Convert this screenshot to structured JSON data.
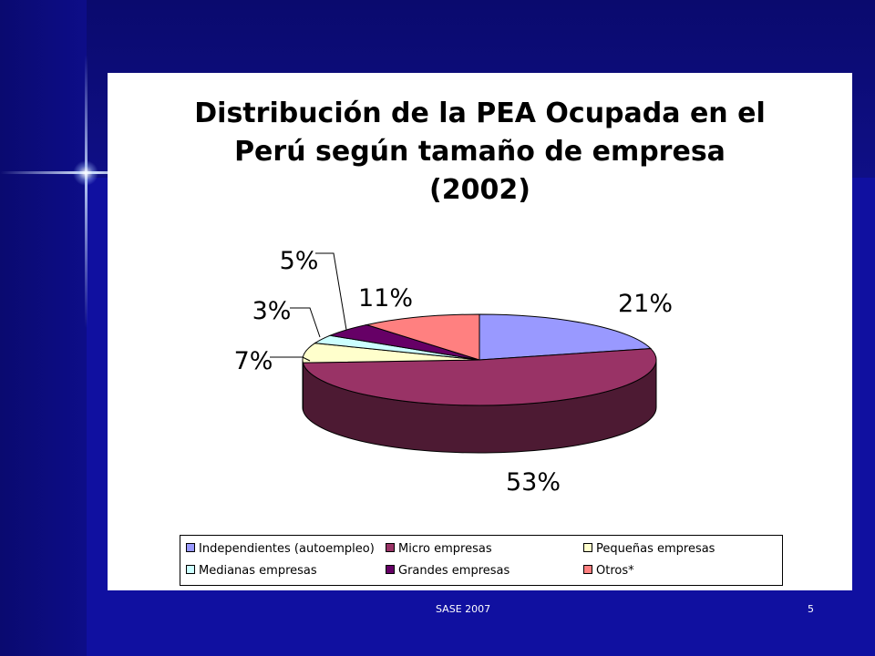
{
  "footer": {
    "left_text": "SASE   2007",
    "page_number": "5"
  },
  "chart_data": {
    "type": "pie",
    "title_lines": [
      "Distribución de la PEA Ocupada en el",
      "Perú según tamaño de empresa",
      "(2002)"
    ],
    "categories": [
      "Independientes (autoempleo)",
      "Micro empresas",
      "Pequeñas empresas",
      "Medianas empresas",
      "Grandes empresas",
      "Otros*"
    ],
    "values": [
      21,
      53,
      7,
      3,
      5,
      11
    ],
    "labels": [
      "21%",
      "53%",
      "7%",
      "3%",
      "5%",
      "11%"
    ],
    "colors": [
      "#9999ff",
      "#993366",
      "#ffffcc",
      "#ccffff",
      "#660066",
      "#ff8080"
    ],
    "side_colors": [
      "#6b6bb3",
      "#4d1a33",
      "#b3b38f",
      "#8fb3b3",
      "#330033",
      "#b35a5a"
    ],
    "legend_position": "bottom",
    "three_d": true
  }
}
